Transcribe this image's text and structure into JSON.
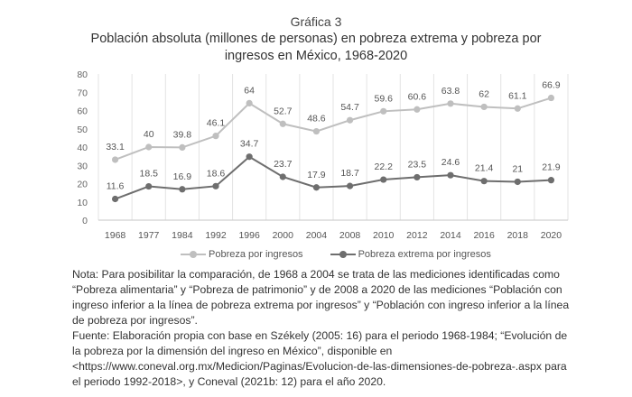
{
  "header": {
    "chart_number": "Gráfica 3",
    "title": "Población absoluta (millones de personas) en pobreza extrema y pobreza por ingresos en México, 1968-2020"
  },
  "chart_data": {
    "type": "line",
    "title": "Población absoluta (millones de personas) en pobreza extrema y pobreza por ingresos en México, 1968-2020",
    "xlabel": "",
    "ylabel": "",
    "categories": [
      "1968",
      "1977",
      "1984",
      "1992",
      "1996",
      "2000",
      "2004",
      "2008",
      "2010",
      "2012",
      "2014",
      "2016",
      "2018",
      "2020"
    ],
    "ylim": [
      0,
      80
    ],
    "yticks": [
      0,
      10,
      20,
      30,
      40,
      50,
      60,
      70,
      80
    ],
    "grid": "vertical",
    "legend_position": "bottom",
    "series": [
      {
        "name": "Pobreza por ingresos",
        "color": "#bfbfbf",
        "values": [
          33.1,
          40,
          39.8,
          46.1,
          64,
          52.7,
          48.6,
          54.7,
          59.6,
          60.6,
          63.8,
          62,
          61.1,
          66.9
        ],
        "labels": [
          "33.1",
          "40",
          "39.8",
          "46.1",
          "64",
          "52.7",
          "48.6",
          "54.7",
          "59.6",
          "60.6",
          "63.8",
          "62",
          "61.1",
          "66.9"
        ]
      },
      {
        "name": "Pobreza extrema por ingresos",
        "color": "#6e6e6e",
        "values": [
          11.6,
          18.5,
          16.9,
          18.6,
          34.7,
          23.7,
          17.9,
          18.7,
          22.2,
          23.5,
          24.6,
          21.4,
          21,
          21.9
        ],
        "labels": [
          "11.6",
          "18.5",
          "16.9",
          "18.6",
          "34.7",
          "23.7",
          "17.9",
          "18.7",
          "22.2",
          "23.5",
          "24.6",
          "21.4",
          "21",
          "21.9"
        ]
      }
    ]
  },
  "notes": {
    "nota": "Nota: Para posibilitar la comparación, de 1968 a 2004 se trata de las mediciones identificadas como “Pobreza alimentaria” y “Pobreza de patrimonio” y de 2008 a 2020 de las mediciones “Población con ingreso inferior a la línea de pobreza extrema por ingresos” y “Población con ingreso inferior a la línea de pobreza por ingresos”.",
    "fuente": "Fuente: Elaboración propia con base en Székely (2005: 16) para el periodo 1968-1984; “Evolución de la pobreza por la dimensión del ingreso en México”, disponible en <https://www.coneval.org.mx/Medicion/Paginas/Evolucion-de-las-dimensiones-de-pobreza-.aspx para el periodo 1992-2018>, y Coneval (2021b: 12) para el año 2020."
  }
}
